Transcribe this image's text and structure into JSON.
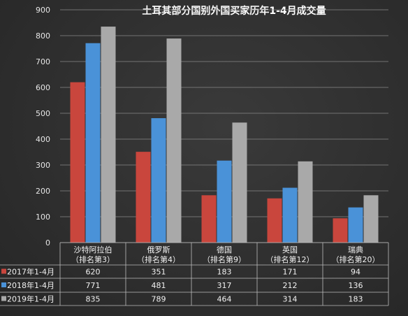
{
  "chart_data": {
    "type": "bar",
    "title": "土耳其部分国别外国买家历年1-4月成交量",
    "categories": [
      [
        "沙特阿拉伯",
        "（排名第3）"
      ],
      [
        "俄罗斯",
        "（排名第4）"
      ],
      [
        "德国",
        "（排名第9）"
      ],
      [
        "英国",
        "（排名第12）"
      ],
      [
        "瑞典",
        "（排名第20）"
      ]
    ],
    "series": [
      {
        "name": "2017年1-4月",
        "color": "#c9463d",
        "values": [
          620,
          351,
          183,
          171,
          94
        ]
      },
      {
        "name": "2018年1-4月",
        "color": "#4a92d8",
        "values": [
          771,
          481,
          317,
          212,
          136
        ]
      },
      {
        "name": "2019年1-4月",
        "color": "#a9a9a9",
        "values": [
          835,
          789,
          464,
          314,
          183
        ]
      }
    ],
    "ylim": [
      0,
      900
    ],
    "yticks": [
      0,
      100,
      200,
      300,
      400,
      500,
      600,
      700,
      800,
      900
    ],
    "grid": true,
    "legend": "data-table"
  }
}
